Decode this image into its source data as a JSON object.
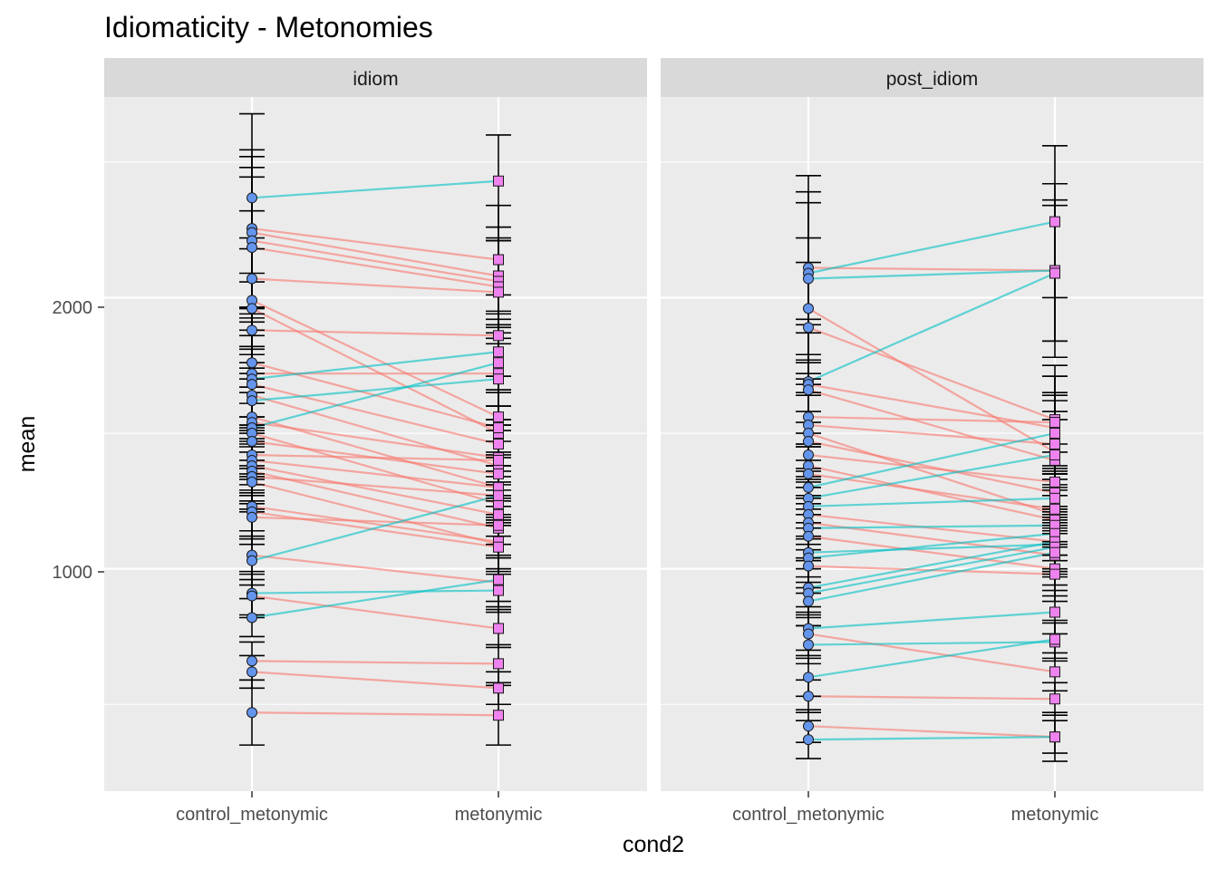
{
  "chart_data": {
    "type": "line",
    "title": "Idiomaticity - Metonomies",
    "xlabel": "cond2",
    "ylabel": "mean",
    "categories": [
      "control_metonymic",
      "metonymic"
    ],
    "y_ticks": [
      1000,
      2000
    ],
    "ylim": [
      180,
      2740
    ],
    "grid": true,
    "legend": "none",
    "colors": {
      "panel_bg": "#EBEBEB",
      "strip_bg": "#D9D9D9",
      "grid": "#FFFFFF",
      "increase_line": "#00BFC4",
      "decrease_line": "#F8766D",
      "control_point": "#6495ED",
      "metonymic_point": "#EE82EE",
      "error_bar": "#000000"
    },
    "facets": [
      {
        "name": "idiom",
        "pairs": [
          [
            2368,
            2430,
            310,
            170
          ],
          [
            2255,
            2140,
            290,
            200
          ],
          [
            2240,
            2080,
            280,
            180
          ],
          [
            2210,
            2060,
            270,
            160
          ],
          [
            2185,
            2040,
            260,
            170
          ],
          [
            2070,
            2020,
            250,
            190
          ],
          [
            1990,
            1560,
            230,
            150
          ],
          [
            1960,
            1500,
            220,
            160
          ],
          [
            1880,
            1860,
            210,
            150
          ],
          [
            1760,
            1520,
            200,
            140
          ],
          [
            1720,
            1720,
            190,
            170
          ],
          [
            1700,
            1800,
            180,
            150
          ],
          [
            1680,
            1460,
            180,
            140
          ],
          [
            1640,
            1380,
            170,
            130
          ],
          [
            1620,
            1700,
            170,
            150
          ],
          [
            1560,
            1300,
            160,
            130
          ],
          [
            1540,
            1410,
            160,
            120
          ],
          [
            1520,
            1760,
            150,
            160
          ],
          [
            1500,
            1240,
            150,
            120
          ],
          [
            1470,
            1350,
            140,
            120
          ],
          [
            1420,
            1400,
            140,
            130
          ],
          [
            1400,
            1300,
            130,
            120
          ],
          [
            1380,
            1200,
            130,
            110
          ],
          [
            1360,
            1150,
            120,
            110
          ],
          [
            1340,
            1270,
            120,
            110
          ],
          [
            1320,
            1090,
            110,
            100
          ],
          [
            1230,
            1100,
            110,
            100
          ],
          [
            1210,
            1080,
            100,
            100
          ],
          [
            1190,
            1160,
            100,
            110
          ],
          [
            1050,
            950,
            90,
            90
          ],
          [
            1030,
            1270,
            90,
            110
          ],
          [
            910,
            920,
            80,
            80
          ],
          [
            900,
            780,
            80,
            70
          ],
          [
            820,
            960,
            70,
            80
          ],
          [
            660,
            650,
            70,
            70
          ],
          [
            620,
            560,
            60,
            60
          ],
          [
            470,
            460,
            120,
            110
          ]
        ]
      },
      {
        "name": "post_idiom",
        "pairs": [
          [
            2110,
            2100,
            340,
            320
          ],
          [
            2090,
            2280,
            300,
            280
          ],
          [
            2070,
            2100,
            280,
            260
          ],
          [
            1960,
            1430,
            260,
            220
          ],
          [
            1890,
            1550,
            240,
            200
          ],
          [
            1690,
            2090,
            230,
            250
          ],
          [
            1680,
            1520,
            220,
            190
          ],
          [
            1660,
            1400,
            210,
            180
          ],
          [
            1560,
            1540,
            200,
            170
          ],
          [
            1530,
            1460,
            190,
            160
          ],
          [
            1500,
            1200,
            180,
            150
          ],
          [
            1470,
            1280,
            170,
            150
          ],
          [
            1420,
            1320,
            160,
            140
          ],
          [
            1380,
            1180,
            160,
            130
          ],
          [
            1350,
            1220,
            150,
            130
          ],
          [
            1300,
            1500,
            150,
            140
          ],
          [
            1260,
            1420,
            140,
            130
          ],
          [
            1230,
            1260,
            140,
            120
          ],
          [
            1200,
            1100,
            130,
            120
          ],
          [
            1170,
            1050,
            130,
            110
          ],
          [
            1150,
            1160,
            120,
            110
          ],
          [
            1120,
            1000,
            120,
            100
          ],
          [
            1060,
            1090,
            110,
            100
          ],
          [
            1040,
            1130,
            110,
            100
          ],
          [
            1010,
            980,
            100,
            100
          ],
          [
            930,
            1100,
            100,
            100
          ],
          [
            910,
            1080,
            90,
            90
          ],
          [
            880,
            1060,
            90,
            90
          ],
          [
            780,
            840,
            80,
            80
          ],
          [
            760,
            620,
            80,
            70
          ],
          [
            720,
            730,
            70,
            70
          ],
          [
            600,
            740,
            70,
            70
          ],
          [
            530,
            520,
            60,
            60
          ],
          [
            420,
            380,
            60,
            60
          ],
          [
            370,
            380,
            70,
            90
          ]
        ]
      }
    ]
  }
}
